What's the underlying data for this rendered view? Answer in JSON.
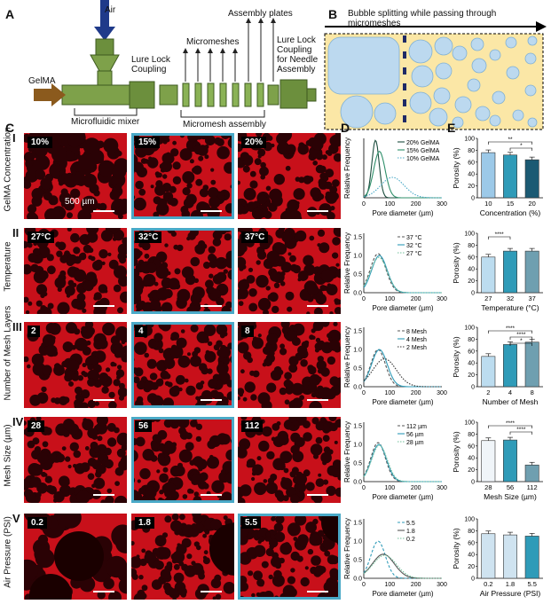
{
  "panels": {
    "A": "A",
    "B": "B",
    "C": "C",
    "D": "D",
    "E": "E"
  },
  "schematic": {
    "air": "Air",
    "gelma": "GelMA",
    "mixer": "Microfluidic mixer",
    "lure_lock": "Lure Lock Coupling",
    "micromeshes": "Micromeshes",
    "assembly_plates": "Assembly plates",
    "micromesh_assembly": "Micromesh assembly",
    "needle_coupling": "Lure Lock Coupling for Needle Assembly"
  },
  "panel_b": {
    "title": "Bubble splitting while passing through micromeshes"
  },
  "rows": [
    {
      "roman": "I",
      "label": "GelMA Concentration",
      "tags": [
        "10%",
        "15%",
        "20%"
      ],
      "selected": 1,
      "scale": "500 µm",
      "legend": [
        "20% GelMA",
        "15% GelMA",
        "10% GelMA"
      ],
      "xlabel": "Pore diameter (µm)",
      "ylabel": "Relative Frequency",
      "xticks": [
        "0",
        "100",
        "200",
        "300"
      ],
      "yticks": [],
      "bar_ylabel": "Porosity (%)",
      "bar_xlabel": "Concentration (%)",
      "bar_categories": [
        "10",
        "15",
        "20"
      ],
      "bar_sig": [
        "**",
        "*"
      ]
    },
    {
      "roman": "II",
      "label": "Temperature",
      "tags": [
        "27°C",
        "32°C",
        "37°C"
      ],
      "selected": 1,
      "legend": [
        "37 °C",
        "32 °C",
        "27 °C"
      ],
      "xlabel": "Pore diameter (µm)",
      "ylabel": "Relative Frequency",
      "xticks": [
        "0",
        "100",
        "200",
        "300"
      ],
      "yticks": [
        "0.0",
        "0.5",
        "1.0",
        "1.5"
      ],
      "bar_ylabel": "Porosity (%)",
      "bar_xlabel": "Temperature (°C)",
      "bar_categories": [
        "27",
        "32",
        "37"
      ],
      "bar_sig": [
        "****"
      ]
    },
    {
      "roman": "III",
      "label": "Number of Mesh Layers",
      "tags": [
        "2",
        "4",
        "8"
      ],
      "selected": 1,
      "legend": [
        "8 Mesh",
        "4 Mesh",
        "2 Mesh"
      ],
      "xlabel": "Pore diameter (µm)",
      "ylabel": "Relative Frequency",
      "xticks": [
        "0",
        "100",
        "200",
        "300"
      ],
      "yticks": [
        "0.0",
        "0.5",
        "1.0",
        "1.5"
      ],
      "bar_ylabel": "Porosity (%)",
      "bar_xlabel": "Number of Mesh",
      "bar_categories": [
        "2",
        "4",
        "8"
      ],
      "bar_sig": [
        "****",
        "****",
        "*"
      ]
    },
    {
      "roman": "IV",
      "label": "Mesh Size (µm)",
      "tags": [
        "28",
        "56",
        "112"
      ],
      "selected": 1,
      "legend": [
        "112 µm",
        "56 µm",
        "28 µm"
      ],
      "xlabel": "Pore diameter (µm)",
      "ylabel": "Relative Frequency",
      "xticks": [
        "0",
        "100",
        "200",
        "300"
      ],
      "yticks": [
        "0.0",
        "0.5",
        "1.0",
        "1.5"
      ],
      "bar_ylabel": "Porosity (%)",
      "bar_xlabel": "Mesh Size (µm)",
      "bar_categories": [
        "28",
        "56",
        "112"
      ],
      "bar_sig": [
        "****",
        "****"
      ]
    },
    {
      "roman": "V",
      "label": "Air Pressure (PSI)",
      "tags": [
        "0.2",
        "1.8",
        "5.5"
      ],
      "selected": 2,
      "legend": [
        "5.5",
        "1.8",
        "0.2"
      ],
      "xlabel": "Pore diameter (µm)",
      "ylabel": "Relative Frequency",
      "xticks": [
        "0",
        "100",
        "200",
        "300"
      ],
      "yticks": [
        "0.0",
        "0.5",
        "1.0",
        "1.5"
      ],
      "bar_ylabel": "Porosity (%)",
      "bar_xlabel": "Air Pressure (PSI)",
      "bar_categories": [
        "0.2",
        "1.8",
        "5.5"
      ],
      "bar_sig": []
    }
  ],
  "bar_yticks": [
    "0",
    "20",
    "40",
    "60",
    "80",
    "100"
  ],
  "chart_data": [
    {
      "type": "bar",
      "categories": [
        "10",
        "15",
        "20"
      ],
      "values": [
        76,
        72,
        64
      ],
      "ylim": [
        0,
        100
      ],
      "xlabel": "Concentration (%)",
      "ylabel": "Porosity (%)",
      "colors": [
        "#9cc9e8",
        "#2f9bb8",
        "#1b5a73"
      ]
    },
    {
      "type": "bar",
      "categories": [
        "27",
        "32",
        "37"
      ],
      "values": [
        60,
        70,
        70
      ],
      "ylim": [
        0,
        100
      ],
      "xlabel": "Temperature (°C)",
      "ylabel": "Porosity (%)",
      "colors": [
        "#bcdcef",
        "#2f9bb8",
        "#6f9fb0"
      ]
    },
    {
      "type": "bar",
      "categories": [
        "2",
        "4",
        "8"
      ],
      "values": [
        51,
        71,
        75
      ],
      "ylim": [
        0,
        100
      ],
      "xlabel": "Number of Mesh",
      "ylabel": "Porosity (%)",
      "colors": [
        "#bcdcef",
        "#2f9bb8",
        "#6f9fb0"
      ]
    },
    {
      "type": "bar",
      "categories": [
        "28",
        "56",
        "112"
      ],
      "values": [
        69,
        70,
        28
      ],
      "ylim": [
        0,
        100
      ],
      "xlabel": "Mesh Size (µm)",
      "ylabel": "Porosity (%)",
      "colors": [
        "#f0f5f9",
        "#2f9bb8",
        "#6f9fb0"
      ]
    },
    {
      "type": "bar",
      "categories": [
        "0.2",
        "1.8",
        "5.5"
      ],
      "values": [
        75,
        73,
        71
      ],
      "ylim": [
        0,
        100
      ],
      "xlabel": "Air Pressure (PSI)",
      "ylabel": "Porosity (%)",
      "colors": [
        "#cfe3f0",
        "#cfe3f0",
        "#2f9bb8"
      ]
    }
  ],
  "distributions": [
    {
      "xlim": [
        0,
        300
      ],
      "ylim": [
        0,
        1.6
      ],
      "series": [
        {
          "name": "20% GelMA",
          "peak": 45,
          "height": 1.55,
          "width": 14,
          "color": "#1b4d3e"
        },
        {
          "name": "15% GelMA",
          "peak": 60,
          "height": 1.25,
          "width": 22,
          "color": "#2f8f6a"
        },
        {
          "name": "10% GelMA",
          "peak": 110,
          "height": 0.55,
          "width": 45,
          "color": "#4aa9c7"
        }
      ]
    },
    {
      "xlim": [
        0,
        300
      ],
      "ylim": [
        0,
        1.6
      ],
      "series": [
        {
          "name": "37 °C",
          "peak": 55,
          "height": 1.05,
          "width": 30,
          "color": "#555"
        },
        {
          "name": "32 °C",
          "peak": 60,
          "height": 1.0,
          "width": 30,
          "color": "#2f9bb8"
        },
        {
          "name": "27 °C",
          "peak": 58,
          "height": 0.95,
          "width": 32,
          "color": "#6fbf9a"
        }
      ]
    },
    {
      "xlim": [
        0,
        300
      ],
      "ylim": [
        0,
        1.6
      ],
      "series": [
        {
          "name": "8 Mesh",
          "peak": 55,
          "height": 1.0,
          "width": 28,
          "color": "#555"
        },
        {
          "name": "4 Mesh",
          "peak": 60,
          "height": 1.0,
          "width": 30,
          "color": "#2f9bb8"
        },
        {
          "name": "2 Mesh",
          "peak": 80,
          "height": 0.75,
          "width": 45,
          "color": "#333"
        }
      ]
    },
    {
      "xlim": [
        0,
        300
      ],
      "ylim": [
        0,
        1.6
      ],
      "series": [
        {
          "name": "112 µm",
          "peak": 55,
          "height": 1.05,
          "width": 28,
          "color": "#555"
        },
        {
          "name": "56 µm",
          "peak": 58,
          "height": 1.0,
          "width": 29,
          "color": "#2f9bb8"
        },
        {
          "name": "28 µm",
          "peak": 60,
          "height": 0.98,
          "width": 30,
          "color": "#6fbf9a"
        }
      ]
    },
    {
      "xlim": [
        0,
        300
      ],
      "ylim": [
        0,
        1.6
      ],
      "series": [
        {
          "name": "5.5",
          "peak": 55,
          "height": 1.0,
          "width": 28,
          "color": "#2f9bb8"
        },
        {
          "name": "1.8",
          "peak": 75,
          "height": 0.65,
          "width": 42,
          "color": "#555"
        },
        {
          "name": "0.2",
          "peak": 80,
          "height": 0.62,
          "width": 45,
          "color": "#6fbf9a"
        }
      ]
    }
  ]
}
